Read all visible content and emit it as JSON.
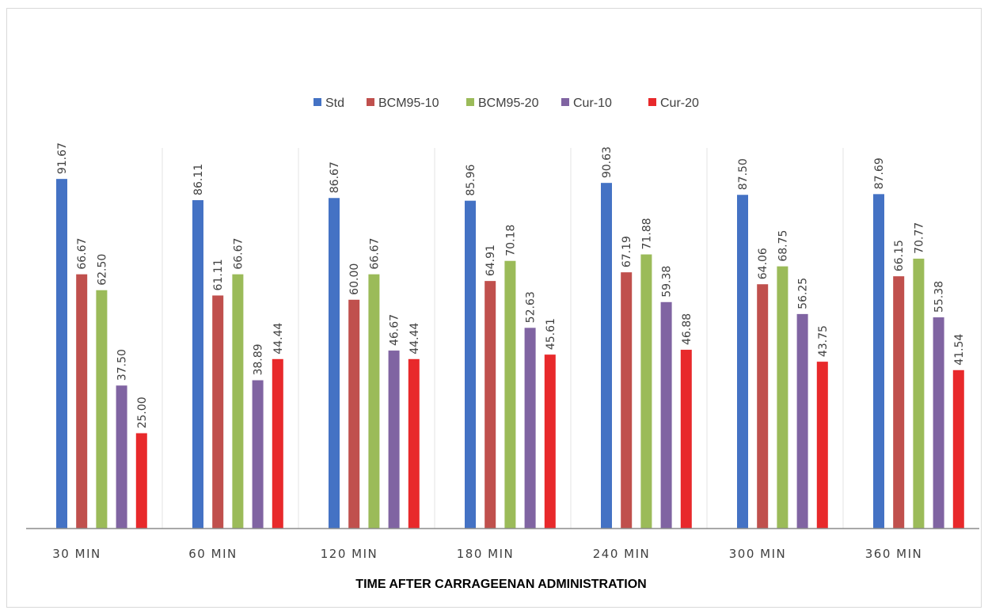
{
  "chart_data": {
    "type": "bar",
    "title": "",
    "xlabel": "TIME AFTER CARRAGEENAN ADMINISTRATION",
    "ylabel": "",
    "ylim": [
      0,
      100
    ],
    "grid": false,
    "legend_position": "top-center",
    "categories": [
      "30 MIN",
      "60 MIN",
      "120 MIN",
      "180 MIN",
      "240 MIN",
      "300 MIN",
      "360 MIN"
    ],
    "series": [
      {
        "name": "Std",
        "color": "#4472c4",
        "values": [
          91.67,
          86.11,
          86.67,
          85.96,
          90.63,
          87.5,
          87.69
        ],
        "labels": [
          "91.67",
          "86.11",
          "86.67",
          "85.96",
          "90.63",
          "87.50",
          "87.69"
        ]
      },
      {
        "name": "BCM95-10",
        "color": "#c0504d",
        "values": [
          66.67,
          61.11,
          60.0,
          64.91,
          67.19,
          64.06,
          66.15
        ],
        "labels": [
          "66.67",
          "61.11",
          "60.00",
          "64.91",
          "67.19",
          "64.06",
          "66.15"
        ]
      },
      {
        "name": "BCM95-20",
        "color": "#9bbb59",
        "values": [
          62.5,
          66.67,
          66.67,
          70.18,
          71.88,
          68.75,
          70.77
        ],
        "labels": [
          "62.50",
          "66.67",
          "66.67",
          "70.18",
          "71.88",
          "68.75",
          "70.77"
        ]
      },
      {
        "name": "Cur-10",
        "color": "#8064a2",
        "values": [
          37.5,
          38.89,
          46.67,
          52.63,
          59.38,
          56.25,
          55.38
        ],
        "labels": [
          "37.50",
          "38.89",
          "46.67",
          "52.63",
          "59.38",
          "56.25",
          "55.38"
        ]
      },
      {
        "name": "Cur-20",
        "color": "#e8292b",
        "values": [
          25.0,
          44.44,
          44.44,
          45.61,
          46.88,
          43.75,
          41.54
        ],
        "labels": [
          "25.00",
          "44.44",
          "44.44",
          "45.61",
          "46.88",
          "43.75",
          "41.54"
        ]
      }
    ]
  }
}
